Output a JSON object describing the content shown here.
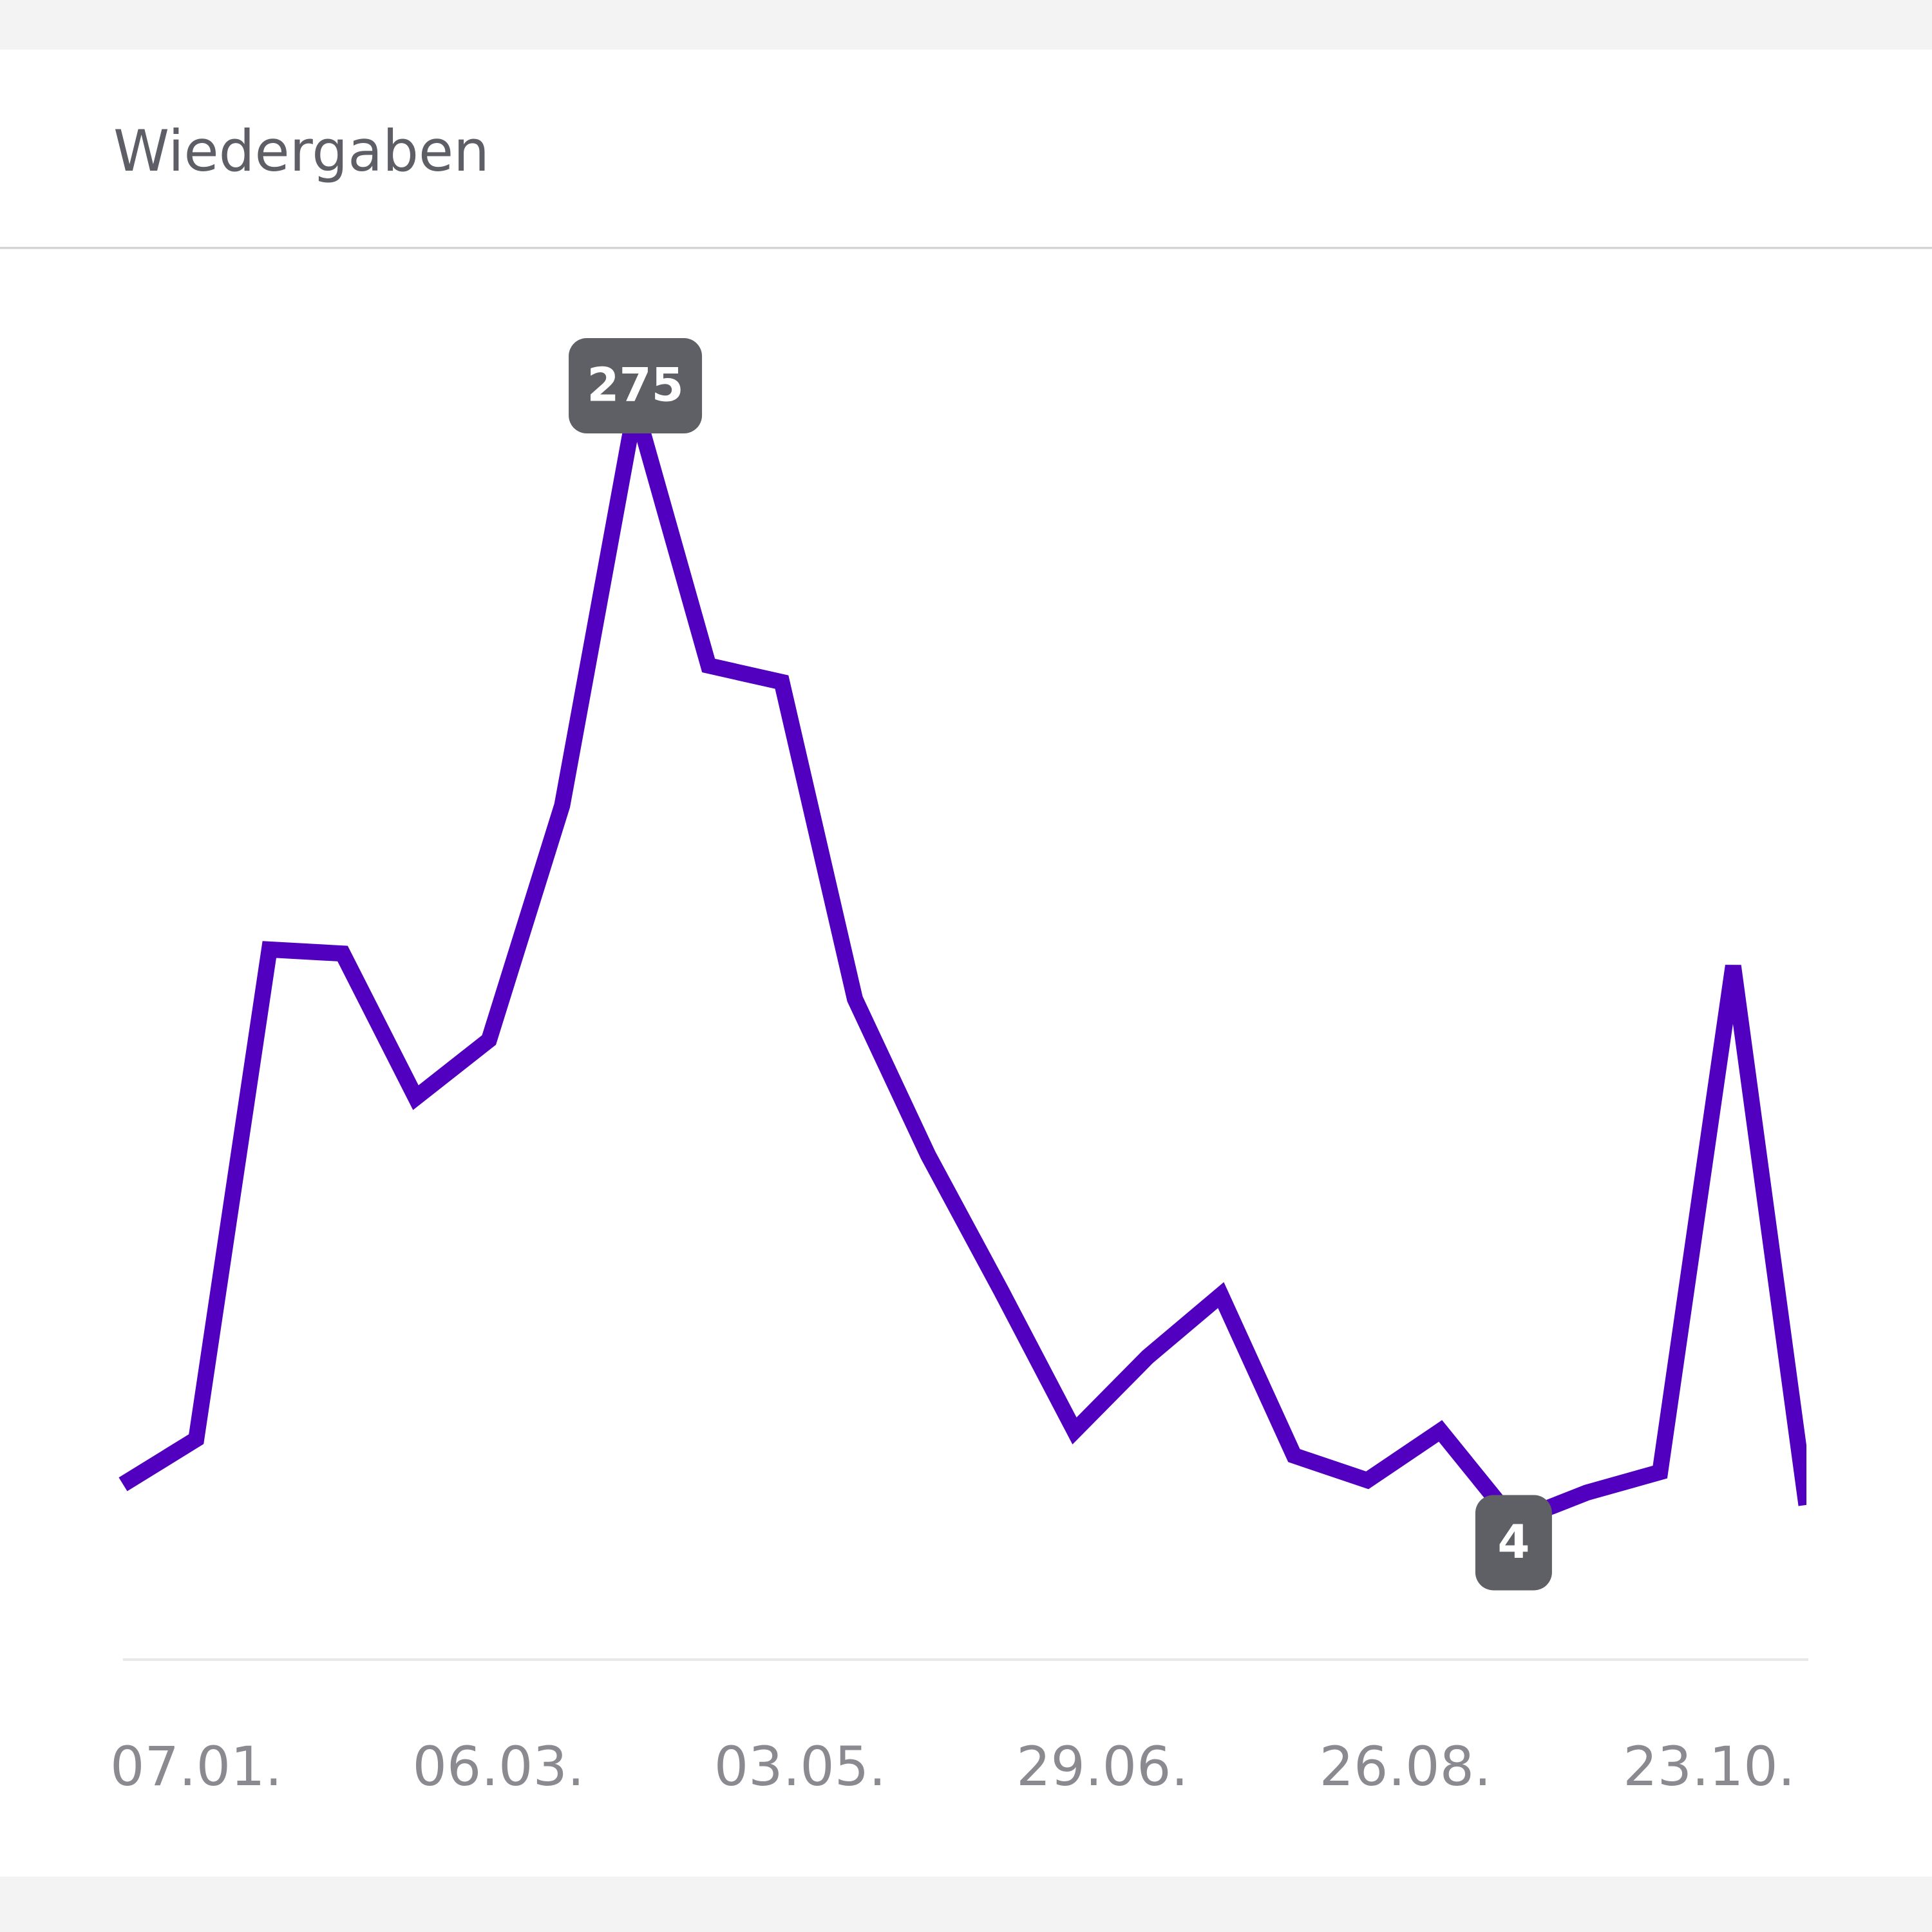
{
  "chart_data": {
    "type": "line",
    "title": "Wiedergaben",
    "x": [
      0,
      1,
      2,
      3,
      4,
      5,
      6,
      7,
      8,
      9,
      10,
      11,
      12,
      13,
      14,
      15,
      16,
      17,
      18,
      19,
      20,
      21,
      22,
      23
    ],
    "values": [
      13,
      24,
      143,
      142,
      107,
      121,
      178,
      275,
      212,
      208,
      131,
      93,
      60,
      26,
      44,
      59,
      20,
      14,
      26,
      4,
      11,
      16,
      139,
      8
    ],
    "color": "#5200c0",
    "xlim": [
      0,
      23
    ],
    "xticks": [
      {
        "value": 1,
        "label": "07.01."
      },
      {
        "value": 5.13,
        "label": "06.03."
      },
      {
        "value": 9.25,
        "label": "03.05."
      },
      {
        "value": 13.38,
        "label": "29.06."
      },
      {
        "value": 17.52,
        "label": "26.08."
      },
      {
        "value": 21.67,
        "label": "23.10."
      }
    ],
    "ylim": [
      0,
      275
    ]
  }
}
